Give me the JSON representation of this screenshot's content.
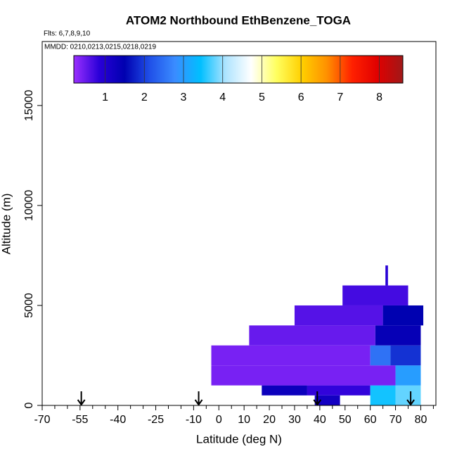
{
  "chart_data": {
    "type": "curtain",
    "title": "ATOM2 Northbound EthBenzene_TOGA",
    "annotations": [
      "Flts: 6,7,8,9,10",
      "MMDD: 0210,0213,0215,0218,0219"
    ],
    "x_label": "Latitude (deg N)",
    "y_label": "Altitude (m)",
    "xlim": [
      -70,
      86
    ],
    "ylim": [
      0,
      18200
    ],
    "xticks": [
      -70,
      -55,
      -40,
      -25,
      -10,
      0,
      10,
      20,
      30,
      40,
      50,
      60,
      70,
      80
    ],
    "xminorticks": [
      -65,
      -60,
      -50,
      -45,
      -35,
      -30,
      -20,
      -15,
      -5,
      5,
      15,
      25,
      35,
      45,
      55,
      65,
      75,
      85
    ],
    "yticks": [
      0,
      5000,
      10000,
      15000
    ],
    "arrows": [
      -54.5,
      -8,
      39,
      76
    ],
    "colorbar": {
      "range": [
        0.2,
        8.6
      ],
      "ticks": [
        1,
        2,
        3,
        4,
        5,
        6,
        7,
        8
      ],
      "colors": [
        "#9b30ff",
        "#2a00d8",
        "#0000b0",
        "#2050e8",
        "#3a8cff",
        "#00bfff",
        "#aee4ff",
        "#ffffff",
        "#ffff60",
        "#ffd000",
        "#ff9000",
        "#ff2000",
        "#e00000",
        "#a01818"
      ]
    },
    "cells": [
      {
        "lat": [
          17,
          35
        ],
        "alt": [
          500,
          1000
        ],
        "value": 1.3
      },
      {
        "lat": [
          35,
          60
        ],
        "alt": [
          500,
          1000
        ],
        "value": 0.8
      },
      {
        "lat": [
          60,
          70
        ],
        "alt": [
          0,
          1000
        ],
        "value": 3.5
      },
      {
        "lat": [
          70,
          80
        ],
        "alt": [
          0,
          1000
        ],
        "value": 3.8
      },
      {
        "lat": [
          38,
          48
        ],
        "alt": [
          0,
          500
        ],
        "value": 1.2
      },
      {
        "lat": [
          -3,
          70
        ],
        "alt": [
          1000,
          2000
        ],
        "value": 0.4
      },
      {
        "lat": [
          70,
          80
        ],
        "alt": [
          1000,
          2000
        ],
        "value": 3.0
      },
      {
        "lat": [
          -3,
          60
        ],
        "alt": [
          2000,
          3000
        ],
        "value": 0.4
      },
      {
        "lat": [
          60,
          68
        ],
        "alt": [
          2000,
          3000
        ],
        "value": 2.5
      },
      {
        "lat": [
          68,
          80
        ],
        "alt": [
          2000,
          3000
        ],
        "value": 1.9
      },
      {
        "lat": [
          12,
          62
        ],
        "alt": [
          3000,
          4000
        ],
        "value": 0.5
      },
      {
        "lat": [
          62,
          80
        ],
        "alt": [
          3000,
          4000
        ],
        "value": 1.4
      },
      {
        "lat": [
          30,
          65
        ],
        "alt": [
          4000,
          5000
        ],
        "value": 0.6
      },
      {
        "lat": [
          65,
          81
        ],
        "alt": [
          4000,
          5000
        ],
        "value": 1.5
      },
      {
        "lat": [
          49,
          75
        ],
        "alt": [
          5000,
          6000
        ],
        "value": 0.7
      },
      {
        "lat": [
          66,
          67
        ],
        "alt": [
          6000,
          7000
        ],
        "value": 0.9
      }
    ]
  }
}
